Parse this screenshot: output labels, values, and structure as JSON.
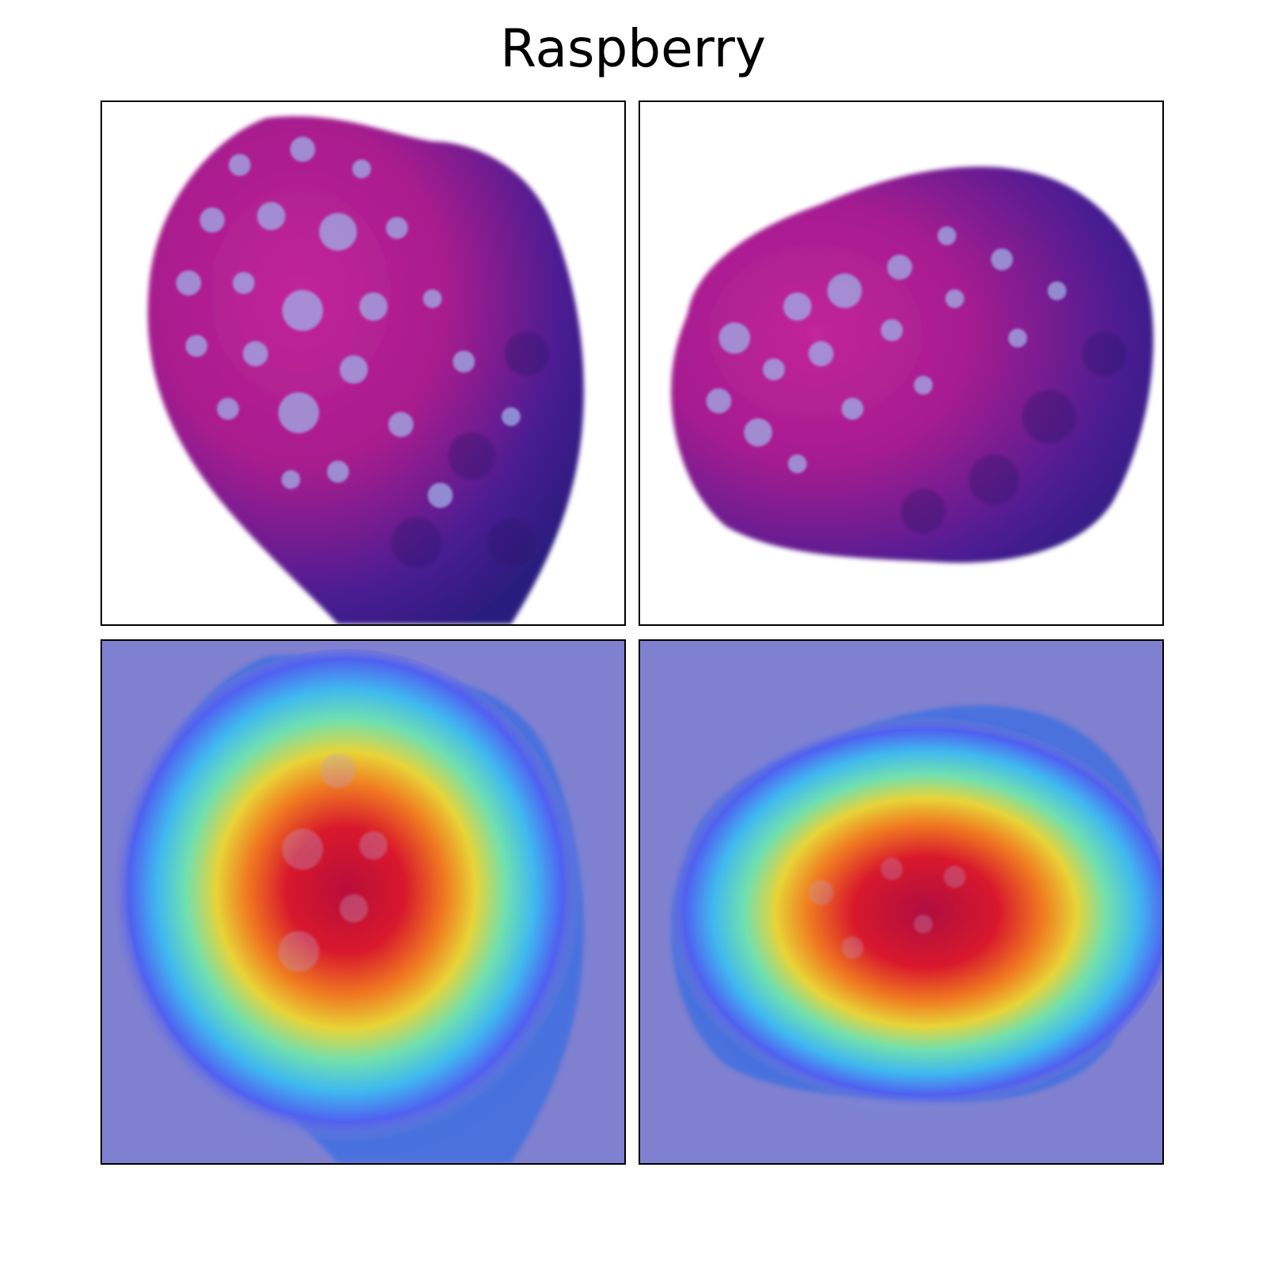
{
  "figure": {
    "title": "Raspberry"
  },
  "panels": [
    {
      "row": "top",
      "col": "left",
      "kind": "photo",
      "subject": "raspberry"
    },
    {
      "row": "top",
      "col": "right",
      "kind": "photo",
      "subject": "raspberry"
    },
    {
      "row": "bottom",
      "col": "left",
      "kind": "heatmap-overlay",
      "subject": "raspberry"
    },
    {
      "row": "bottom",
      "col": "right",
      "kind": "heatmap-overlay",
      "subject": "raspberry"
    }
  ],
  "colors": {
    "fruit_magenta": "#b0208f",
    "fruit_dark": "#3a1a8a",
    "heat_background": "#7f80d0",
    "heat_red": "#d4102c",
    "heat_yellow": "#f0d030",
    "heat_cyan": "#50e0f0"
  }
}
